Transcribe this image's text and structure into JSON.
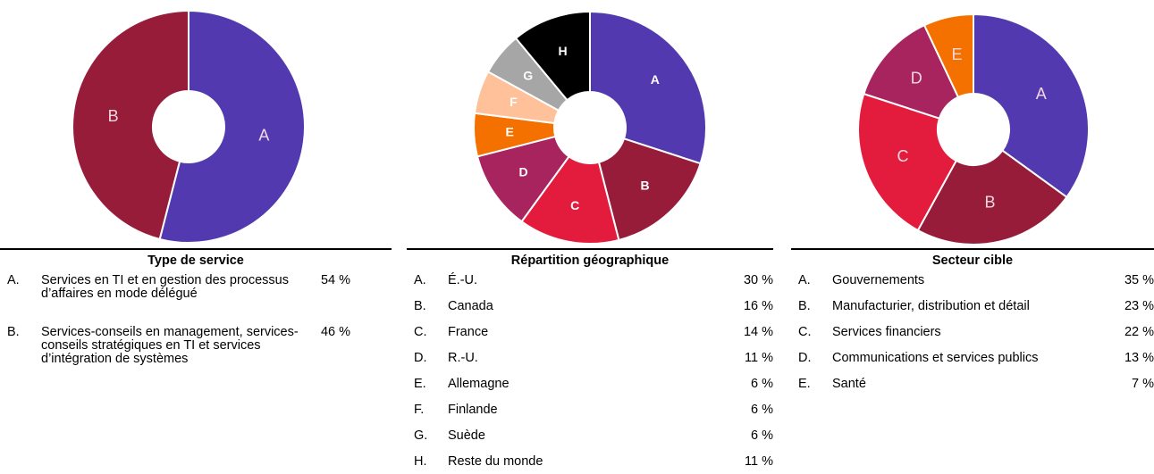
{
  "chart_data": [
    {
      "type": "pie",
      "title": "Type de service",
      "label_bold": false,
      "categories": [
        "A",
        "B"
      ],
      "keys": [
        "A.",
        "B."
      ],
      "labels": [
        "Services en TI et en gestion des processus d’affaires en mode délégué",
        "Services-conseils en management, services-conseils stratégiques en TI et services d’intégration de systèmes"
      ],
      "values": [
        54,
        46
      ],
      "value_labels": [
        "54 %",
        "46 %"
      ],
      "colors": [
        "#5339b0",
        "#961c3a"
      ]
    },
    {
      "type": "pie",
      "title": "Répartition géographique",
      "label_bold": true,
      "categories": [
        "A",
        "B",
        "C",
        "D",
        "E",
        "F",
        "G",
        "H"
      ],
      "keys": [
        "A.",
        "B.",
        "C.",
        "D.",
        "E.",
        "F.",
        "G.",
        "H."
      ],
      "labels": [
        "É.-U.",
        "Canada",
        "France",
        "R.-U.",
        "Allemagne",
        "Finlande",
        "Suède",
        "Reste du monde"
      ],
      "values": [
        30,
        16,
        14,
        11,
        6,
        6,
        6,
        11
      ],
      "value_labels": [
        "30 %",
        "16 %",
        "14 %",
        "11 %",
        "6 %",
        "6 %",
        "6 %",
        "11 %"
      ],
      "colors": [
        "#5339b0",
        "#961c3a",
        "#e31c3d",
        "#a8245f",
        "#f47100",
        "#ffc199",
        "#a6a6a6",
        "#000000"
      ]
    },
    {
      "type": "pie",
      "title": "Secteur cible",
      "label_bold": false,
      "categories": [
        "A",
        "B",
        "C",
        "D",
        "E"
      ],
      "keys": [
        "A.",
        "B.",
        "C.",
        "D.",
        "E."
      ],
      "labels": [
        "Gouvernements",
        "Manufacturier, distribution et détail",
        "Services financiers",
        "Communications et services publics",
        "Santé"
      ],
      "values": [
        35,
        23,
        22,
        13,
        7
      ],
      "value_labels": [
        "35 %",
        "23 %",
        "22 %",
        "13 %",
        "7 %"
      ],
      "colors": [
        "#5339b0",
        "#961c3a",
        "#e31c3d",
        "#a8245f",
        "#f47100"
      ]
    }
  ]
}
